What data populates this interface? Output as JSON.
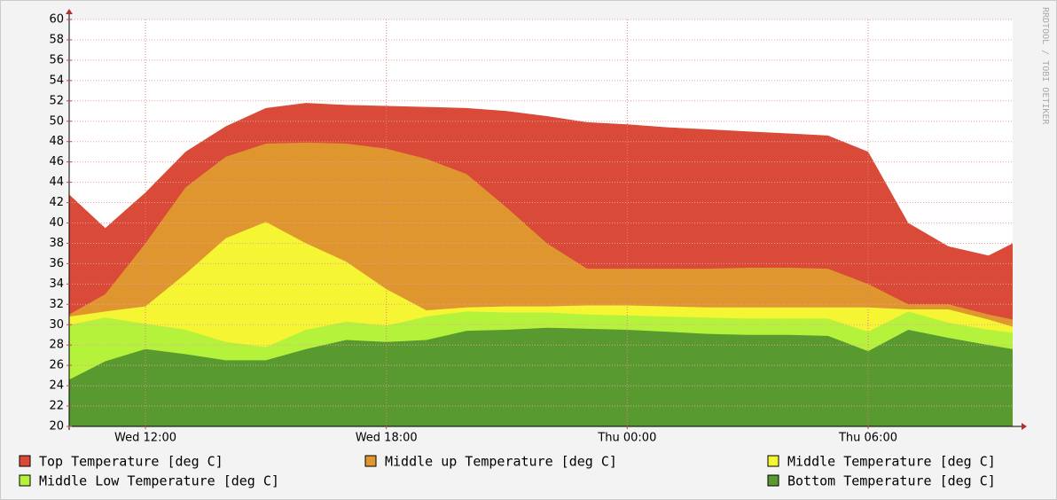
{
  "chart_data": {
    "type": "area",
    "watermark": "RRDTOOL / TOBI OETIKER",
    "x": [
      10.1,
      11,
      12,
      13,
      14,
      15,
      16,
      17,
      18,
      19,
      20,
      21,
      22,
      23,
      24,
      25,
      26,
      27,
      28,
      29,
      30,
      31,
      32,
      33,
      33.6
    ],
    "xlim": [
      10.1,
      33.6
    ],
    "xticks": [
      {
        "value": 12,
        "label": "Wed 12:00"
      },
      {
        "value": 18,
        "label": "Wed 18:00"
      },
      {
        "value": 24,
        "label": "Thu 00:00"
      },
      {
        "value": 30,
        "label": "Thu 06:00"
      }
    ],
    "ylim": [
      20,
      60
    ],
    "yticks": [
      20,
      22,
      24,
      26,
      28,
      30,
      32,
      34,
      36,
      38,
      40,
      42,
      44,
      46,
      48,
      50,
      52,
      54,
      56,
      58,
      60
    ],
    "grid": true,
    "series": [
      {
        "name": "Top Temperature [deg C]",
        "color": "#da4a38",
        "values": [
          42.8,
          39.5,
          43,
          47,
          49.5,
          51.3,
          51.8,
          51.6,
          51.5,
          51.4,
          51.3,
          51,
          50.5,
          49.9,
          49.7,
          49.4,
          49.2,
          49,
          48.8,
          48.6,
          47,
          40,
          37.7,
          36.8,
          38
        ]
      },
      {
        "name": "Middle up Temperature [deg C]",
        "color": "#e0962f",
        "values": [
          31,
          33,
          38,
          43.5,
          46.5,
          47.8,
          47.9,
          47.8,
          47.3,
          46.3,
          44.8,
          41.5,
          38,
          35.5,
          35.5,
          35.5,
          35.5,
          35.6,
          35.6,
          35.5,
          34,
          32,
          32,
          31,
          30.5
        ]
      },
      {
        "name": "Middle Temperature [deg C]",
        "color": "#f5f534",
        "values": [
          30.8,
          31.3,
          31.8,
          35,
          38.5,
          40.1,
          38,
          36.2,
          33.5,
          31.4,
          31.7,
          31.8,
          31.8,
          31.9,
          31.9,
          31.8,
          31.7,
          31.7,
          31.7,
          31.7,
          31.7,
          31.5,
          31.5,
          30.5,
          29.8
        ]
      },
      {
        "name": "Middle Low Temperature [deg C]",
        "color": "#b5f23c",
        "values": [
          30,
          30.7,
          30.1,
          29.5,
          28.3,
          27.8,
          29.5,
          30.3,
          29.9,
          30.8,
          31.3,
          31.2,
          31.2,
          31,
          30.9,
          30.8,
          30.7,
          30.6,
          30.6,
          30.6,
          29.3,
          31.3,
          30.2,
          29.5,
          29.2
        ]
      },
      {
        "name": "Bottom Temperature [deg C]",
        "color": "#589a30",
        "values": [
          24.6,
          26.4,
          27.6,
          27.1,
          26.5,
          26.5,
          27.6,
          28.5,
          28.3,
          28.5,
          29.4,
          29.5,
          29.7,
          29.6,
          29.5,
          29.3,
          29.1,
          29,
          29,
          28.9,
          27.4,
          29.5,
          28.7,
          28,
          27.6
        ]
      }
    ]
  }
}
